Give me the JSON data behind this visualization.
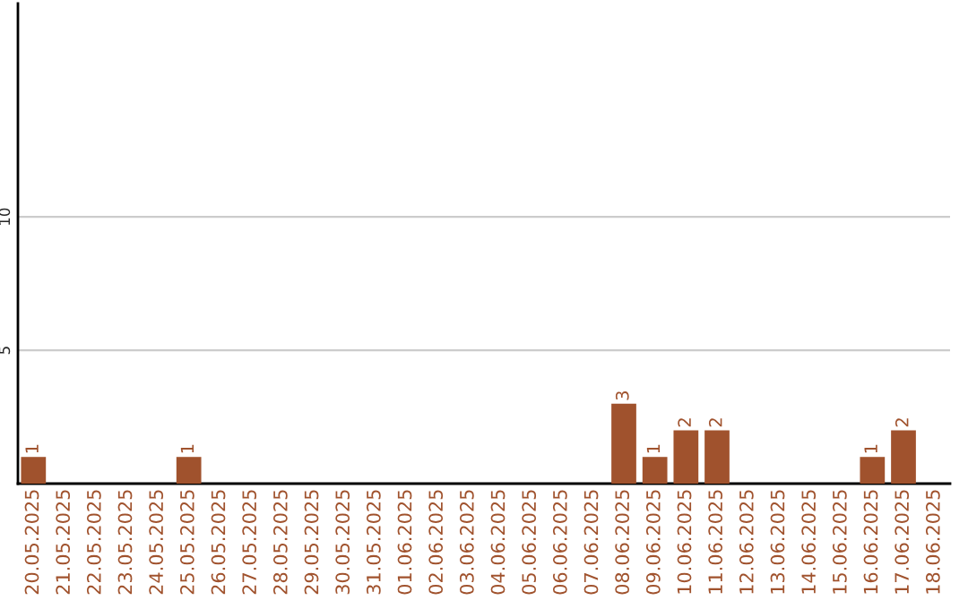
{
  "chart_data": {
    "type": "bar",
    "categories": [
      "20.05.2025",
      "21.05.2025",
      "22.05.2025",
      "23.05.2025",
      "24.05.2025",
      "25.05.2025",
      "26.05.2025",
      "27.05.2025",
      "28.05.2025",
      "29.05.2025",
      "30.05.2025",
      "31.05.2025",
      "01.06.2025",
      "02.06.2025",
      "03.06.2025",
      "04.06.2025",
      "05.06.2025",
      "06.06.2025",
      "07.06.2025",
      "08.06.2025",
      "09.06.2025",
      "10.06.2025",
      "11.06.2025",
      "12.06.2025",
      "13.06.2025",
      "14.06.2025",
      "15.06.2025",
      "16.06.2025",
      "17.06.2025",
      "18.06.2025"
    ],
    "values": [
      1,
      0,
      0,
      0,
      0,
      1,
      0,
      0,
      0,
      0,
      0,
      0,
      0,
      0,
      0,
      0,
      0,
      0,
      0,
      3,
      1,
      2,
      2,
      0,
      0,
      0,
      0,
      1,
      2,
      0
    ],
    "value_labels": [
      "1",
      null,
      null,
      null,
      null,
      "1",
      null,
      null,
      null,
      null,
      null,
      null,
      null,
      null,
      null,
      null,
      null,
      null,
      null,
      "3",
      "1",
      "2",
      "2",
      null,
      null,
      null,
      null,
      "1",
      "2",
      null
    ],
    "color": "#a0522d",
    "ylim": [
      0,
      18
    ],
    "yticks": [
      5,
      10
    ],
    "grid": "y"
  }
}
